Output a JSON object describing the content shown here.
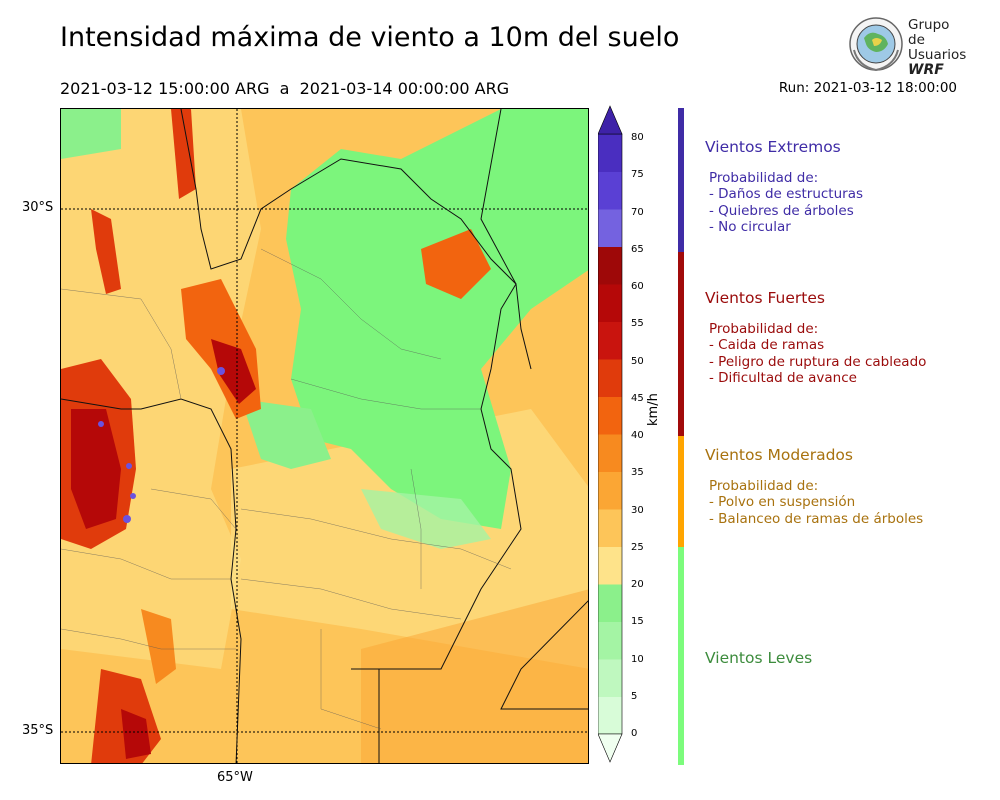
{
  "title": "Intensidad máxima de viento a 10m del suelo",
  "period": "2021-03-12 15:00:00 ARG  a  2021-03-14 00:00:00 ARG",
  "run": "Run: 2021-03-12 18:00:00",
  "logo": {
    "line1": "Grupo de",
    "line2": "Usuarios",
    "line3": "WRF"
  },
  "map": {
    "lat_labels": [
      "30°S",
      "35°S"
    ],
    "lon_labels": [
      "65°W"
    ]
  },
  "colorbar": {
    "unit": "km/h",
    "ticks": [
      "80",
      "75",
      "70",
      "65",
      "60",
      "55",
      "50",
      "45",
      "40",
      "35",
      "30",
      "25",
      "20",
      "15",
      "10",
      "5",
      "0"
    ],
    "colors": [
      "#f0fff0",
      "#d8fcd8",
      "#bff8bf",
      "#a4f4a4",
      "#8bf08b",
      "#fee38a",
      "#fdc559",
      "#fba634",
      "#f78a1f",
      "#f2640f",
      "#e03b0c",
      "#c9140e",
      "#b50808",
      "#9e0808",
      "#7462e0",
      "#5a40d4",
      "#4a2ec0",
      "#3e22a8"
    ]
  },
  "categories": [
    {
      "title": "Vientos Extremos",
      "color": "#3f2ca6",
      "bar_color": "#3f2ca6",
      "desc": [
        "Probabilidad de:",
        "- Daños de estructuras",
        "- Quiebres de árboles",
        "- No circular"
      ]
    },
    {
      "title": "Vientos Fuertes",
      "color": "#9a0b0b",
      "bar_color": "#a10a0a",
      "desc": [
        "Probabilidad de:",
        "- Caida de ramas",
        "- Peligro de ruptura de cableado",
        "- Dificultad de avance"
      ]
    },
    {
      "title": "Vientos Moderados",
      "color": "#a8720f",
      "bar_color": "#ffa500",
      "desc": [
        "Probabilidad de:",
        "- Polvo en suspensión",
        "- Balanceo de ramas de árboles"
      ]
    },
    {
      "title": "Vientos Leves",
      "color": "#3d8c3d",
      "bar_color": "#7cfc7c",
      "desc": []
    }
  ]
}
